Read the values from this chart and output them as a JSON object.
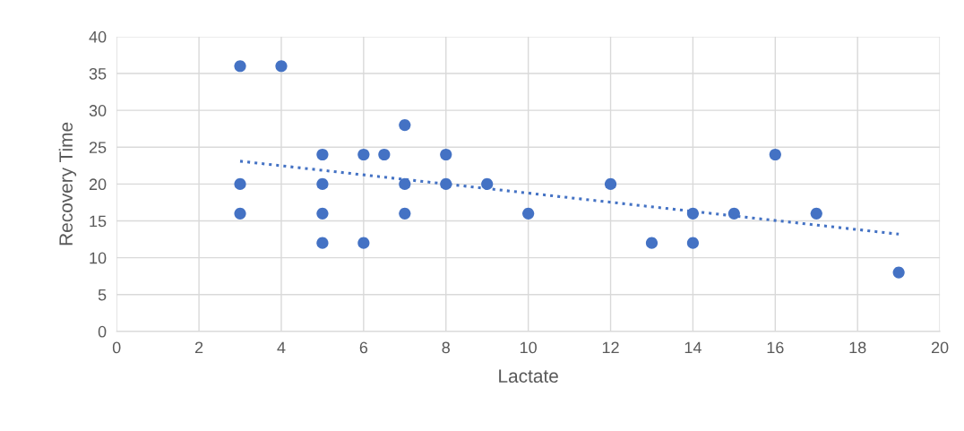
{
  "chart_data": {
    "type": "scatter",
    "xlabel": "Lactate",
    "ylabel": "Recovery Time",
    "xlim": [
      0,
      20
    ],
    "xticks": [
      0,
      2,
      4,
      6,
      8,
      10,
      12,
      14,
      16,
      18,
      20
    ],
    "ylim": [
      0,
      40
    ],
    "yticks": [
      0,
      5,
      10,
      15,
      20,
      25,
      30,
      35,
      40
    ],
    "grid": true,
    "marker": "circle",
    "series": [
      {
        "color": "#4472c4",
        "x": [
          3,
          4,
          3,
          3,
          5,
          5,
          5,
          5,
          6,
          6.5,
          6,
          7,
          7,
          7,
          8,
          8,
          9,
          10,
          12,
          13,
          14,
          14,
          15,
          16,
          17,
          19
        ],
        "values": [
          36,
          36,
          20,
          16,
          24,
          20,
          16,
          12,
          24,
          24,
          12,
          28,
          20,
          16,
          24,
          20,
          20,
          16,
          20,
          12,
          16,
          12,
          16,
          24,
          16,
          8
        ]
      },
      {
        "type": "line",
        "color": "#4472c4",
        "line_style": "dotted",
        "marker": "none",
        "x": [
          3,
          19
        ],
        "values": [
          23.1,
          13.2
        ]
      }
    ]
  }
}
